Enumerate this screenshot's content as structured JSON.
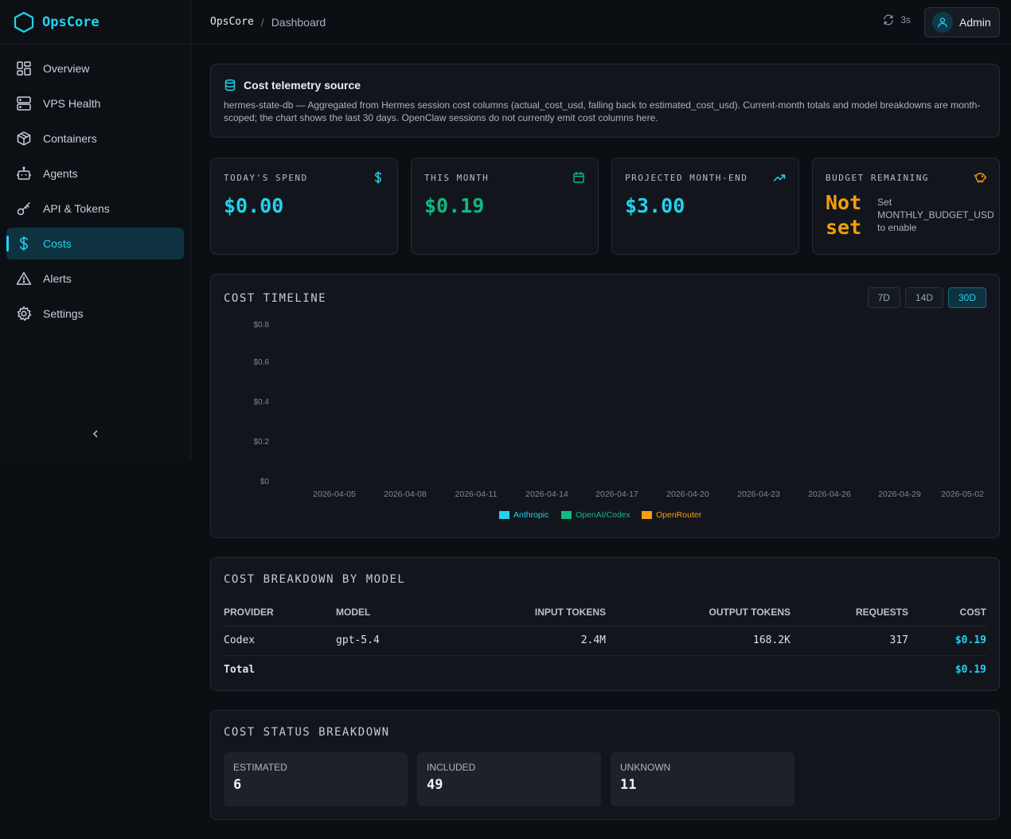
{
  "app": {
    "name": "OpsCore"
  },
  "breadcrumb": {
    "root": "OpsCore",
    "separator": "/",
    "page": "Dashboard"
  },
  "topbar": {
    "refresh_interval": "3s",
    "user": "Admin"
  },
  "sidebar": {
    "items": [
      {
        "label": "Overview",
        "icon": "layout-grid-icon",
        "active": false
      },
      {
        "label": "VPS Health",
        "icon": "server-icon",
        "active": false
      },
      {
        "label": "Containers",
        "icon": "box-icon",
        "active": false
      },
      {
        "label": "Agents",
        "icon": "bot-icon",
        "active": false
      },
      {
        "label": "API & Tokens",
        "icon": "key-icon",
        "active": false
      },
      {
        "label": "Costs",
        "icon": "dollar-icon",
        "active": true
      },
      {
        "label": "Alerts",
        "icon": "alert-triangle-icon",
        "active": false
      },
      {
        "label": "Settings",
        "icon": "gear-icon",
        "active": false
      }
    ]
  },
  "info": {
    "title": "Cost telemetry source",
    "body": "hermes-state-db — Aggregated from Hermes session cost columns (actual_cost_usd, falling back to estimated_cost_usd). Current-month totals and model breakdowns are month-scoped; the chart shows the last 30 days. OpenClaw sessions do not currently emit cost columns here."
  },
  "kpis": [
    {
      "label": "TODAY'S SPEND",
      "value": "$0.00",
      "color": "#22d3ee",
      "icon": "dollar-icon"
    },
    {
      "label": "THIS MONTH",
      "value": "$0.19",
      "color": "#10b981",
      "icon": "calendar-icon"
    },
    {
      "label": "PROJECTED MONTH-END",
      "value": "$3.00",
      "color": "#22d3ee",
      "icon": "trending-up-icon"
    },
    {
      "label": "BUDGET REMAINING",
      "value_line1": "Not",
      "value_line2": "set",
      "note": "Set MONTHLY_BUDGET_USD to enable",
      "color": "#f59e0b",
      "icon": "piggy-bank-icon"
    }
  ],
  "timeline": {
    "title": "COST TIMELINE",
    "ranges": [
      "7D",
      "14D",
      "30D"
    ],
    "active_range": "30D"
  },
  "chart_data": {
    "type": "bar",
    "title": "COST TIMELINE",
    "y_ticks": [
      "$0.8",
      "$0.6",
      "$0.4",
      "$0.2",
      "$0"
    ],
    "ylim": [
      0,
      0.8
    ],
    "x_ticks": [
      "2026-04-05",
      "2026-04-08",
      "2026-04-11",
      "2026-04-14",
      "2026-04-17",
      "2026-04-20",
      "2026-04-23",
      "2026-04-26",
      "2026-04-29",
      "2026-05-02"
    ],
    "series": [
      {
        "name": "Anthropic",
        "color": "#22d3ee",
        "values": []
      },
      {
        "name": "OpenAI/Codex",
        "color": "#10b981",
        "values": []
      },
      {
        "name": "OpenRouter",
        "color": "#f59e0b",
        "values": []
      }
    ],
    "legend": "bottom",
    "grid": false
  },
  "breakdown": {
    "title": "COST BREAKDOWN BY MODEL",
    "columns": [
      "PROVIDER",
      "MODEL",
      "INPUT TOKENS",
      "OUTPUT TOKENS",
      "REQUESTS",
      "COST"
    ],
    "rows": [
      {
        "provider": "Codex",
        "model": "gpt-5.4",
        "input": "2.4M",
        "output": "168.2K",
        "requests": "317",
        "cost": "$0.19"
      }
    ],
    "total_label": "Total",
    "total_cost": "$0.19"
  },
  "status": {
    "title": "COST STATUS BREAKDOWN",
    "items": [
      {
        "label": "ESTIMATED",
        "value": "6"
      },
      {
        "label": "INCLUDED",
        "value": "49"
      },
      {
        "label": "UNKNOWN",
        "value": "11"
      }
    ]
  }
}
